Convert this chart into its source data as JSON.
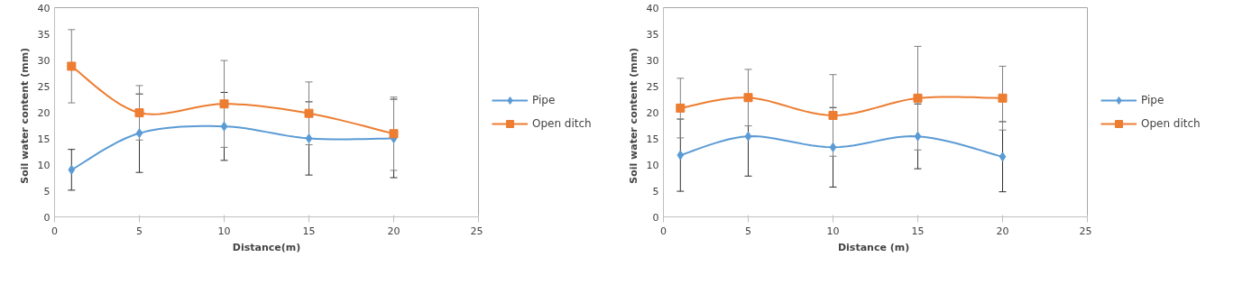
{
  "chart_data": [
    {
      "type": "line",
      "xlabel": "Distance(m)",
      "ylabel": "Soil water  content  (mm)",
      "x": [
        1,
        5,
        10,
        15,
        20
      ],
      "xlim": [
        0,
        25
      ],
      "xticks": [
        0,
        5,
        10,
        15,
        20,
        25
      ],
      "ylim": [
        0,
        40
      ],
      "yticks": [
        0,
        5,
        10,
        15,
        20,
        25,
        30,
        35,
        40
      ],
      "grid": false,
      "legend": "right",
      "series": [
        {
          "name": "Pipe",
          "color": "#5b9bd5",
          "marker": "diamond",
          "values": [
            9.0,
            16.0,
            17.3,
            15.0,
            15.0
          ],
          "errors": [
            3.9,
            7.5,
            6.5,
            7.0,
            7.5
          ]
        },
        {
          "name": "Open ditch",
          "color": "#ed7d31",
          "marker": "square",
          "values": [
            28.8,
            19.9,
            21.6,
            19.8,
            15.9
          ],
          "errors": [
            7.0,
            5.2,
            8.3,
            6.0,
            7.0
          ]
        }
      ]
    },
    {
      "type": "line",
      "xlabel": "Distance  (m)",
      "ylabel": "Soil water  content  (mm)",
      "x": [
        1,
        5,
        10,
        15,
        20
      ],
      "xlim": [
        0,
        25
      ],
      "xticks": [
        0,
        5,
        10,
        15,
        20,
        25
      ],
      "ylim": [
        0,
        40
      ],
      "yticks": [
        0,
        5,
        10,
        15,
        20,
        25,
        30,
        35,
        40
      ],
      "grid": false,
      "legend": "right",
      "series": [
        {
          "name": "Pipe",
          "color": "#5b9bd5",
          "marker": "diamond",
          "values": [
            11.8,
            15.4,
            13.3,
            15.4,
            11.5
          ],
          "errors": [
            6.9,
            7.6,
            7.6,
            6.2,
            6.7
          ]
        },
        {
          "name": "Open ditch",
          "color": "#ed7d31",
          "marker": "square",
          "values": [
            20.8,
            22.8,
            19.4,
            22.7,
            22.7
          ],
          "errors": [
            5.7,
            5.4,
            7.8,
            9.9,
            6.1
          ]
        }
      ]
    }
  ]
}
